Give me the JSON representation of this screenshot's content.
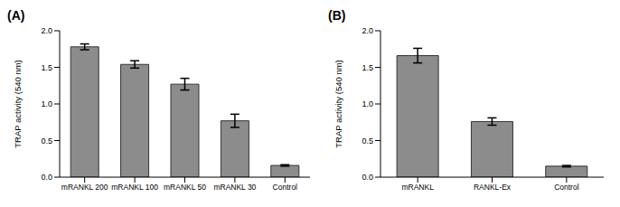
{
  "chart_data": [
    {
      "type": "bar",
      "title": "(A)",
      "y_label": "TRAP activity (540 nm)",
      "categories": [
        "mRANKL 200",
        "mRANKL 100",
        "mRANKL 50",
        "mRANKL 30",
        "Control"
      ],
      "values": [
        1.78,
        1.54,
        1.27,
        0.77,
        0.16
      ],
      "errors": [
        0.04,
        0.05,
        0.08,
        0.09,
        0.01
      ],
      "color": "#8c8c8c",
      "ylim": [
        0,
        2.0
      ],
      "yticks": [
        {
          "value": 0,
          "label": "0.0"
        },
        {
          "value": 0.5,
          "label": "0.5"
        },
        {
          "value": 1.0,
          "label": "1.0"
        },
        {
          "value": 1.5,
          "label": "1.5"
        },
        {
          "value": 2.0,
          "label": "2.0"
        }
      ]
    },
    {
      "type": "bar",
      "title": "(B)",
      "y_label": "TRAP activity (540 nm)",
      "categories": [
        "mRANKL",
        "RANKL-Ex",
        "Control"
      ],
      "values": [
        1.66,
        0.76,
        0.15
      ],
      "errors": [
        0.1,
        0.05,
        0.01
      ],
      "color": "#8c8c8c",
      "ylim": [
        0,
        2.0
      ],
      "yticks": [
        {
          "value": 0,
          "label": "0.0"
        },
        {
          "value": 0.5,
          "label": "0.5"
        },
        {
          "value": 1.0,
          "label": "1.0"
        },
        {
          "value": 1.5,
          "label": "1.5"
        },
        {
          "value": 2.0,
          "label": "2.0"
        }
      ]
    }
  ]
}
